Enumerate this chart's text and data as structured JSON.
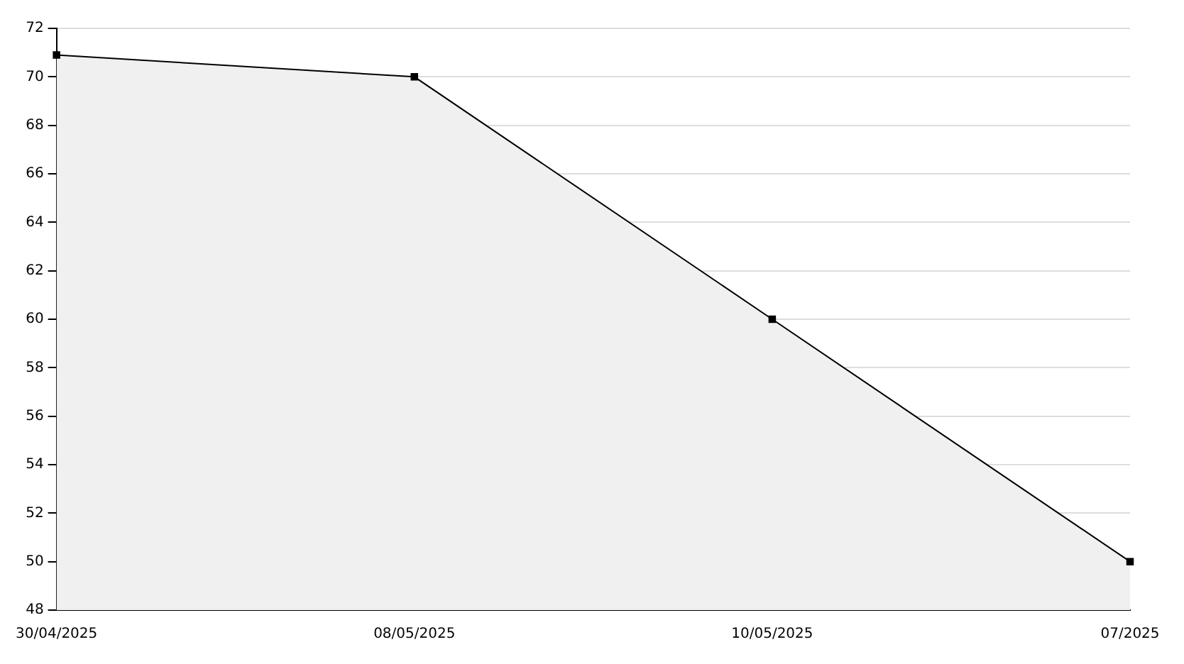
{
  "chart_data": {
    "type": "area",
    "categories": [
      "30/04/2025",
      "08/05/2025",
      "10/05/2025",
      "07/2025"
    ],
    "series": [
      {
        "color": "#000000",
        "values": [
          70.9,
          70,
          60,
          50
        ]
      }
    ],
    "ylim": [
      48,
      72
    ],
    "yticks": [
      48,
      50,
      52,
      54,
      56,
      58,
      60,
      62,
      64,
      66,
      68,
      70,
      72
    ],
    "grid": "y",
    "marker": "square",
    "legend": false
  }
}
